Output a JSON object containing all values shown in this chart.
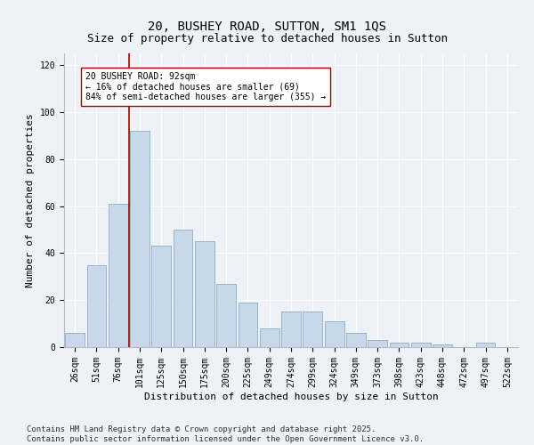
{
  "title1": "20, BUSHEY ROAD, SUTTON, SM1 1QS",
  "title2": "Size of property relative to detached houses in Sutton",
  "xlabel": "Distribution of detached houses by size in Sutton",
  "ylabel": "Number of detached properties",
  "categories": [
    "26sqm",
    "51sqm",
    "76sqm",
    "101sqm",
    "125sqm",
    "150sqm",
    "175sqm",
    "200sqm",
    "225sqm",
    "249sqm",
    "274sqm",
    "299sqm",
    "324sqm",
    "349sqm",
    "373sqm",
    "398sqm",
    "423sqm",
    "448sqm",
    "472sqm",
    "497sqm",
    "522sqm"
  ],
  "values": [
    6,
    35,
    61,
    92,
    43,
    50,
    45,
    27,
    19,
    8,
    15,
    15,
    11,
    6,
    3,
    2,
    2,
    1,
    0,
    2,
    0
  ],
  "bar_color": "#c8d8ea",
  "bar_edge_color": "#89afc8",
  "background_color": "#eef2f8",
  "grid_color": "#ffffff",
  "vline_color": "#aa0000",
  "annotation_text": "20 BUSHEY ROAD: 92sqm\n← 16% of detached houses are smaller (69)\n84% of semi-detached houses are larger (355) →",
  "annotation_box_color": "#ffffff",
  "annotation_box_edge": "#aa0000",
  "ylim": [
    0,
    125
  ],
  "yticks": [
    0,
    20,
    40,
    60,
    80,
    100,
    120
  ],
  "footer1": "Contains HM Land Registry data © Crown copyright and database right 2025.",
  "footer2": "Contains public sector information licensed under the Open Government Licence v3.0.",
  "title_fontsize": 10,
  "tick_fontsize": 7,
  "label_fontsize": 8,
  "annot_fontsize": 7,
  "footer_fontsize": 6.5
}
